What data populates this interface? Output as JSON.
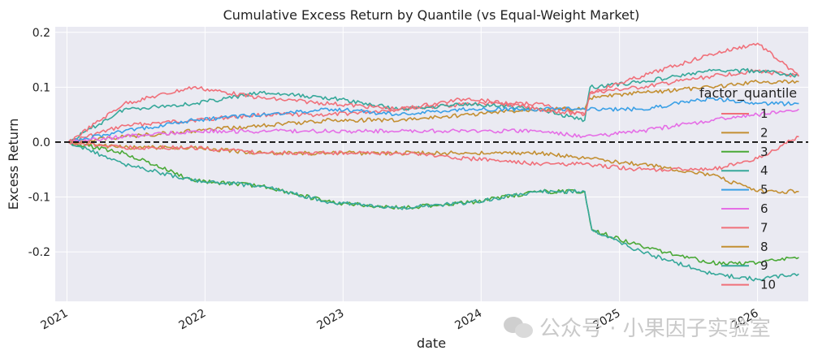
{
  "chart_data": {
    "type": "line",
    "title": "Cumulative Excess Return by Quantile (vs Equal-Weight Market)",
    "xlabel": "date",
    "ylabel": "Excess Return",
    "xlim": [
      "2020-12-01",
      "2026-05-15"
    ],
    "ylim": [
      -0.29,
      0.21
    ],
    "x_ticks": [
      "2021",
      "2022",
      "2023",
      "2024",
      "2025",
      "2026"
    ],
    "y_ticks": [
      -0.2,
      -0.1,
      0.0,
      0.1,
      0.2
    ],
    "y_tick_labels": [
      "-0.2",
      "-0.1",
      "0.0",
      "0.1",
      "0.2"
    ],
    "grid": true,
    "reference_line": {
      "y": 0.0,
      "style": "dashed",
      "color": "#111111"
    },
    "legend": {
      "title": "factor_quantile",
      "placement": "right"
    },
    "series": [
      {
        "name": "1",
        "color": "#f0707a",
        "points": [
          [
            "2021-01-05",
            0.0
          ],
          [
            "2021-06-01",
            0.03
          ],
          [
            "2021-12-01",
            0.04
          ],
          [
            "2022-06-01",
            0.05
          ],
          [
            "2022-12-01",
            0.05
          ],
          [
            "2023-06-01",
            0.06
          ],
          [
            "2023-12-01",
            0.07
          ],
          [
            "2024-06-01",
            0.07
          ],
          [
            "2024-10-01",
            0.05
          ],
          [
            "2024-10-15",
            0.09
          ],
          [
            "2025-03-01",
            0.1
          ],
          [
            "2025-09-01",
            0.12
          ],
          [
            "2026-01-01",
            0.13
          ],
          [
            "2026-04-20",
            0.12
          ]
        ]
      },
      {
        "name": "2",
        "color": "#c38f32",
        "points": [
          [
            "2021-01-05",
            0.0
          ],
          [
            "2021-06-01",
            0.01
          ],
          [
            "2021-12-01",
            0.02
          ],
          [
            "2022-06-01",
            0.03
          ],
          [
            "2022-12-01",
            0.04
          ],
          [
            "2023-06-01",
            0.04
          ],
          [
            "2023-12-01",
            0.05
          ],
          [
            "2024-06-01",
            0.06
          ],
          [
            "2024-10-01",
            0.06
          ],
          [
            "2024-10-15",
            0.08
          ],
          [
            "2025-03-01",
            0.09
          ],
          [
            "2025-09-01",
            0.1
          ],
          [
            "2026-01-01",
            0.11
          ],
          [
            "2026-04-20",
            0.11
          ]
        ]
      },
      {
        "name": "3",
        "color": "#4aa937",
        "points": [
          [
            "2021-01-05",
            0.0
          ],
          [
            "2021-06-01",
            -0.02
          ],
          [
            "2021-12-01",
            -0.07
          ],
          [
            "2022-06-01",
            -0.08
          ],
          [
            "2022-12-01",
            -0.11
          ],
          [
            "2023-06-01",
            -0.12
          ],
          [
            "2023-12-01",
            -0.11
          ],
          [
            "2024-06-01",
            -0.09
          ],
          [
            "2024-10-01",
            -0.09
          ],
          [
            "2024-10-20",
            -0.16
          ],
          [
            "2025-03-01",
            -0.19
          ],
          [
            "2025-09-01",
            -0.22
          ],
          [
            "2026-01-01",
            -0.22
          ],
          [
            "2026-04-20",
            -0.21
          ]
        ]
      },
      {
        "name": "4",
        "color": "#36a89a",
        "points": [
          [
            "2021-01-05",
            0.0
          ],
          [
            "2021-06-01",
            0.06
          ],
          [
            "2021-12-01",
            0.07
          ],
          [
            "2022-06-01",
            0.09
          ],
          [
            "2022-12-01",
            0.08
          ],
          [
            "2023-06-01",
            0.06
          ],
          [
            "2023-12-01",
            0.07
          ],
          [
            "2024-06-01",
            0.06
          ],
          [
            "2024-10-01",
            0.04
          ],
          [
            "2024-10-15",
            0.1
          ],
          [
            "2025-03-01",
            0.11
          ],
          [
            "2025-09-01",
            0.13
          ],
          [
            "2026-01-01",
            0.13
          ],
          [
            "2026-04-20",
            0.12
          ]
        ]
      },
      {
        "name": "5",
        "color": "#3aa0e6",
        "points": [
          [
            "2021-01-05",
            0.0
          ],
          [
            "2021-06-01",
            0.02
          ],
          [
            "2021-12-01",
            0.04
          ],
          [
            "2022-06-01",
            0.05
          ],
          [
            "2022-12-01",
            0.06
          ],
          [
            "2023-06-01",
            0.05
          ],
          [
            "2023-12-01",
            0.06
          ],
          [
            "2024-06-01",
            0.06
          ],
          [
            "2024-10-01",
            0.06
          ],
          [
            "2025-03-01",
            0.06
          ],
          [
            "2025-09-01",
            0.08
          ],
          [
            "2026-01-01",
            0.07
          ],
          [
            "2026-04-20",
            0.07
          ]
        ]
      },
      {
        "name": "6",
        "color": "#e56ee6",
        "points": [
          [
            "2021-01-05",
            0.0
          ],
          [
            "2021-06-01",
            0.01
          ],
          [
            "2021-12-01",
            0.02
          ],
          [
            "2022-06-01",
            0.02
          ],
          [
            "2022-12-01",
            0.02
          ],
          [
            "2023-06-01",
            0.02
          ],
          [
            "2023-12-01",
            0.02
          ],
          [
            "2024-06-01",
            0.02
          ],
          [
            "2024-10-01",
            0.01
          ],
          [
            "2025-03-01",
            0.02
          ],
          [
            "2025-09-01",
            0.04
          ],
          [
            "2026-01-01",
            0.05
          ],
          [
            "2026-04-20",
            0.06
          ]
        ]
      },
      {
        "name": "7",
        "color": "#f0707a",
        "points": [
          [
            "2021-01-05",
            0.0
          ],
          [
            "2021-06-01",
            0.07
          ],
          [
            "2021-12-01",
            0.1
          ],
          [
            "2022-06-01",
            0.08
          ],
          [
            "2022-12-01",
            0.07
          ],
          [
            "2023-06-01",
            0.06
          ],
          [
            "2023-12-01",
            0.08
          ],
          [
            "2024-06-01",
            0.06
          ],
          [
            "2024-10-01",
            0.05
          ],
          [
            "2024-10-15",
            0.09
          ],
          [
            "2025-03-01",
            0.12
          ],
          [
            "2025-09-01",
            0.16
          ],
          [
            "2026-01-01",
            0.18
          ],
          [
            "2026-04-20",
            0.12
          ]
        ]
      },
      {
        "name": "8",
        "color": "#c38f32",
        "points": [
          [
            "2021-01-05",
            0.0
          ],
          [
            "2021-06-01",
            -0.01
          ],
          [
            "2021-12-01",
            -0.01
          ],
          [
            "2022-06-01",
            -0.02
          ],
          [
            "2022-12-01",
            -0.02
          ],
          [
            "2023-06-01",
            -0.02
          ],
          [
            "2023-12-01",
            -0.02
          ],
          [
            "2024-06-01",
            -0.02
          ],
          [
            "2024-10-01",
            -0.03
          ],
          [
            "2025-03-01",
            -0.04
          ],
          [
            "2025-09-01",
            -0.06
          ],
          [
            "2026-01-01",
            -0.09
          ],
          [
            "2026-04-20",
            -0.09
          ]
        ]
      },
      {
        "name": "9",
        "color": "#36a89a",
        "points": [
          [
            "2021-01-05",
            0.0
          ],
          [
            "2021-06-01",
            -0.04
          ],
          [
            "2021-12-01",
            -0.07
          ],
          [
            "2022-06-01",
            -0.08
          ],
          [
            "2022-12-01",
            -0.11
          ],
          [
            "2023-06-01",
            -0.12
          ],
          [
            "2023-12-01",
            -0.11
          ],
          [
            "2024-06-01",
            -0.09
          ],
          [
            "2024-10-01",
            -0.09
          ],
          [
            "2024-10-20",
            -0.16
          ],
          [
            "2025-03-01",
            -0.2
          ],
          [
            "2025-09-01",
            -0.24
          ],
          [
            "2026-01-01",
            -0.25
          ],
          [
            "2026-04-20",
            -0.24
          ]
        ]
      },
      {
        "name": "10",
        "color": "#f0707a",
        "points": [
          [
            "2021-01-05",
            0.0
          ],
          [
            "2021-06-01",
            -0.01
          ],
          [
            "2021-12-01",
            -0.01
          ],
          [
            "2022-06-01",
            -0.02
          ],
          [
            "2022-12-01",
            -0.02
          ],
          [
            "2023-06-01",
            -0.02
          ],
          [
            "2023-12-01",
            -0.03
          ],
          [
            "2024-06-01",
            -0.04
          ],
          [
            "2024-10-01",
            -0.04
          ],
          [
            "2025-03-01",
            -0.05
          ],
          [
            "2025-09-01",
            -0.05
          ],
          [
            "2026-01-01",
            -0.03
          ],
          [
            "2026-04-20",
            0.01
          ]
        ]
      }
    ]
  },
  "watermark": {
    "text": "公众号 · 小果因子实验室",
    "icon": "wechat-icon"
  }
}
